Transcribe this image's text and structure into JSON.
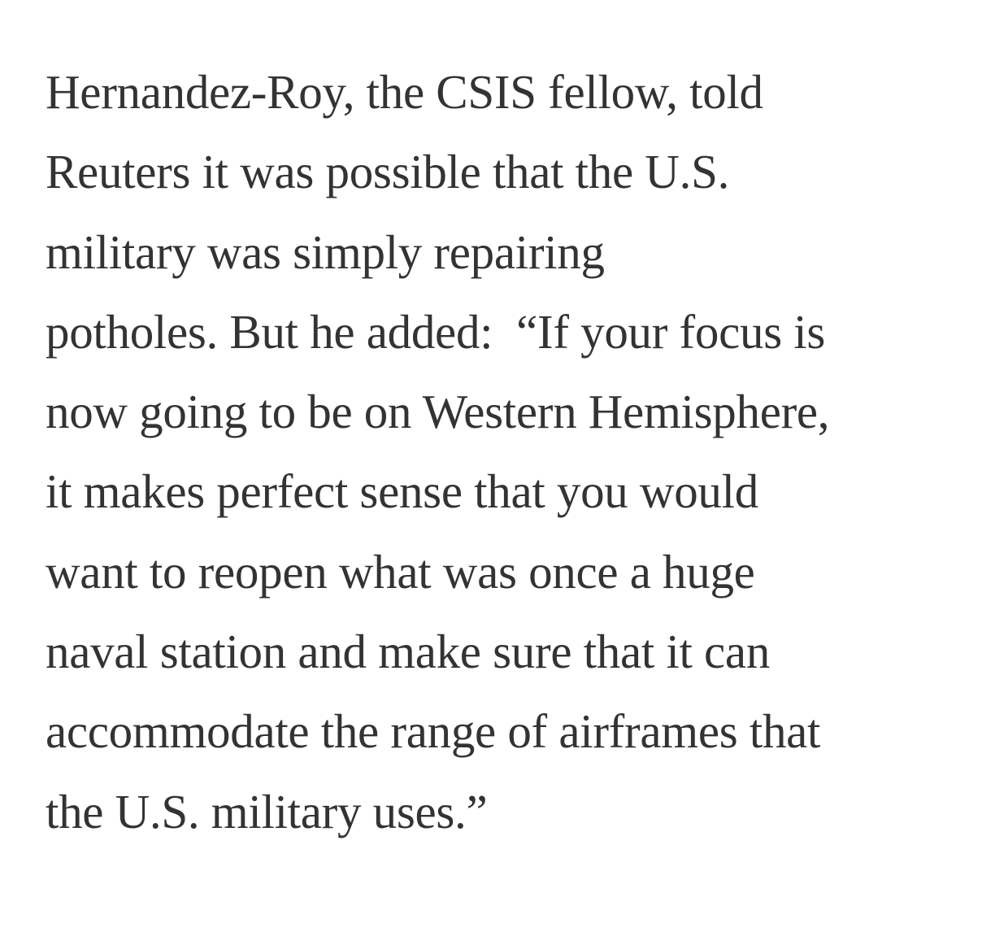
{
  "article": {
    "paragraph_lines": [
      "Hernandez-Roy, the CSIS fellow, told",
      "Reuters it was possible that the U.S.",
      "military was simply repairing",
      "potholes. But he added:  “If your focus is",
      "now going to be on Western Hemisphere,",
      "it makes perfect sense that you would",
      "want to reopen what was once a huge",
      "naval station and make sure that it can",
      "accommodate the range of airframes that",
      "the U.S. military uses.”"
    ]
  }
}
